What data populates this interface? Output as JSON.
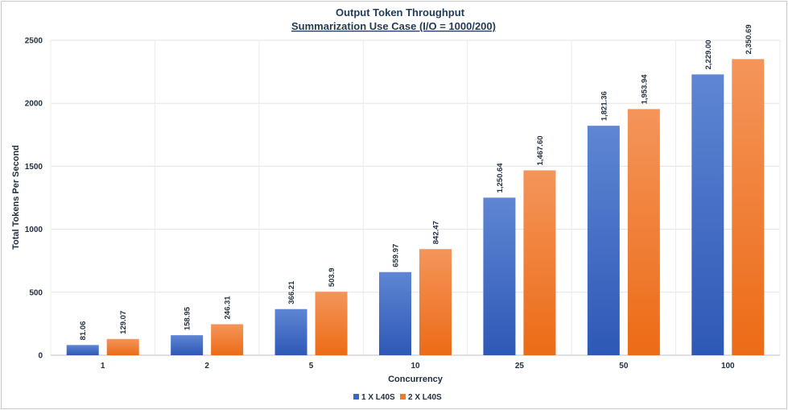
{
  "chart_data": {
    "type": "bar",
    "title": "Output Token Throughput",
    "subtitle": "Summarization Use Case (I/O = 1000/200)",
    "xlabel": "Concurrency",
    "ylabel": "Total Tokens Per Second",
    "ylim": [
      0,
      2500
    ],
    "yticks": [
      0,
      500,
      1000,
      1500,
      2000,
      2500
    ],
    "grid": true,
    "legend_position": "bottom",
    "categories": [
      "1",
      "2",
      "5",
      "10",
      "25",
      "50",
      "100"
    ],
    "series": [
      {
        "name": "1 X L40S",
        "color": "#3a67c4",
        "values": [
          81.06,
          158.95,
          366.21,
          659.97,
          1250.64,
          1821.36,
          2229.0
        ],
        "labels": [
          "81.06",
          "158.95",
          "366.21",
          "659.97",
          "1,250.64",
          "1,821.36",
          "2,229.00"
        ]
      },
      {
        "name": "2 X L40S",
        "color": "#f07a28",
        "values": [
          129.07,
          246.31,
          503.9,
          842.47,
          1467.6,
          1953.94,
          2350.69
        ],
        "labels": [
          "129.07",
          "246.31",
          "503.9",
          "842.47",
          "1,467.60",
          "1,953.94",
          "2,350.69"
        ]
      }
    ]
  }
}
